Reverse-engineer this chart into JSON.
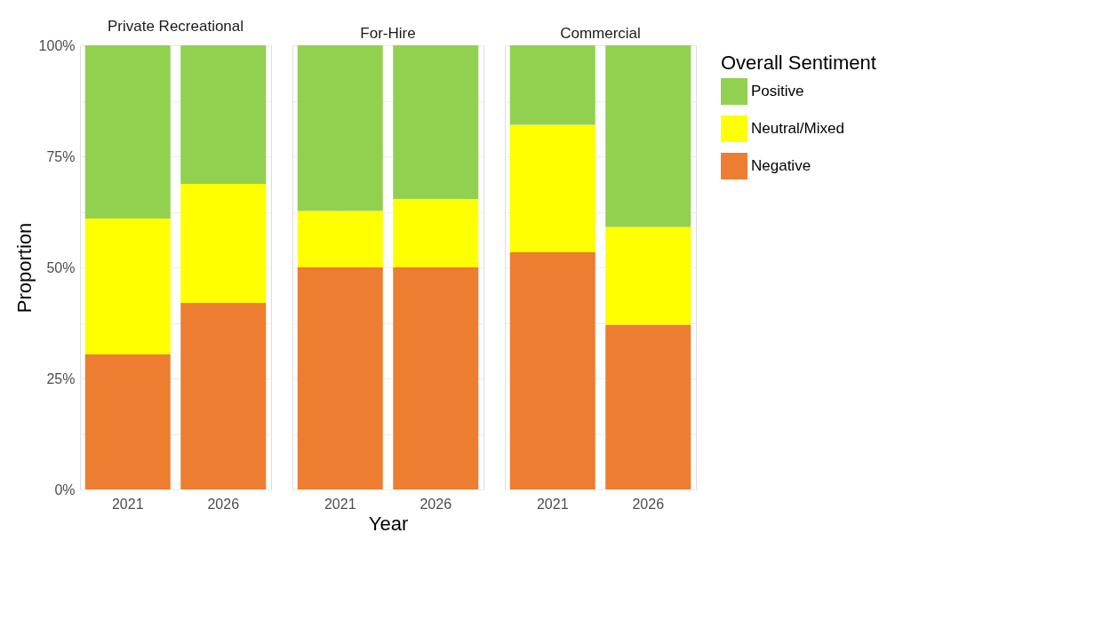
{
  "chart_data": [
    {
      "type": "bar",
      "title": "Private Recreational",
      "ylabel": "Proportion",
      "stacked": true,
      "categories": [
        "2021",
        "2026"
      ],
      "ylim": [
        0,
        100
      ],
      "yticks": [
        {
          "value": 0,
          "label": "0%"
        },
        {
          "value": 12.5,
          "label": null
        },
        {
          "value": 25,
          "label": "25%"
        },
        {
          "value": 37.5,
          "label": null
        },
        {
          "value": 50,
          "label": "50%"
        },
        {
          "value": 62.5,
          "label": null
        },
        {
          "value": 75,
          "label": "75%"
        },
        {
          "value": 87.5,
          "label": null
        },
        {
          "value": 100,
          "label": "100%"
        }
      ],
      "grid": true,
      "series": [
        {
          "color": "#ed7d31",
          "values": [
            30.4,
            42.0
          ]
        },
        {
          "color": "#ffff00",
          "values": [
            30.6,
            26.8
          ]
        },
        {
          "color": "#92d050",
          "values": [
            39.0,
            31.2
          ]
        }
      ]
    },
    {
      "type": "bar",
      "title": "For-Hire",
      "xlabel": "Year",
      "stacked": true,
      "categories": [
        "2021",
        "2026"
      ],
      "ylim": [
        0,
        100
      ],
      "yticks": [
        0,
        12.5,
        25,
        37.5,
        50,
        62.5,
        75,
        87.5,
        100
      ],
      "grid": true,
      "tick_labels": "x",
      "series": [
        {
          "color": "#ed7d31",
          "values": [
            50.0,
            50.0
          ]
        },
        {
          "color": "#ffff00",
          "values": [
            12.7,
            15.4
          ]
        },
        {
          "color": "#92d050",
          "values": [
            37.3,
            34.6
          ]
        }
      ]
    },
    {
      "type": "bar",
      "title": "Commercial",
      "legend_title": "Overall Sentiment",
      "stacked": true,
      "categories": [
        "2021",
        "2026"
      ],
      "ylim": [
        0,
        100
      ],
      "yticks": [
        0,
        12.5,
        25,
        37.5,
        50,
        62.5,
        75,
        87.5,
        100
      ],
      "grid": true,
      "legend": "right",
      "tick_labels": "x",
      "series": [
        {
          "name": "Negative",
          "color": "#ed7d31",
          "values": [
            53.4,
            37.1
          ]
        },
        {
          "name": "Neutral/Mixed",
          "color": "#ffff00",
          "values": [
            28.7,
            22.0
          ]
        },
        {
          "name": "Positive",
          "color": "#92d050",
          "values": [
            17.9,
            40.9
          ]
        }
      ]
    }
  ]
}
